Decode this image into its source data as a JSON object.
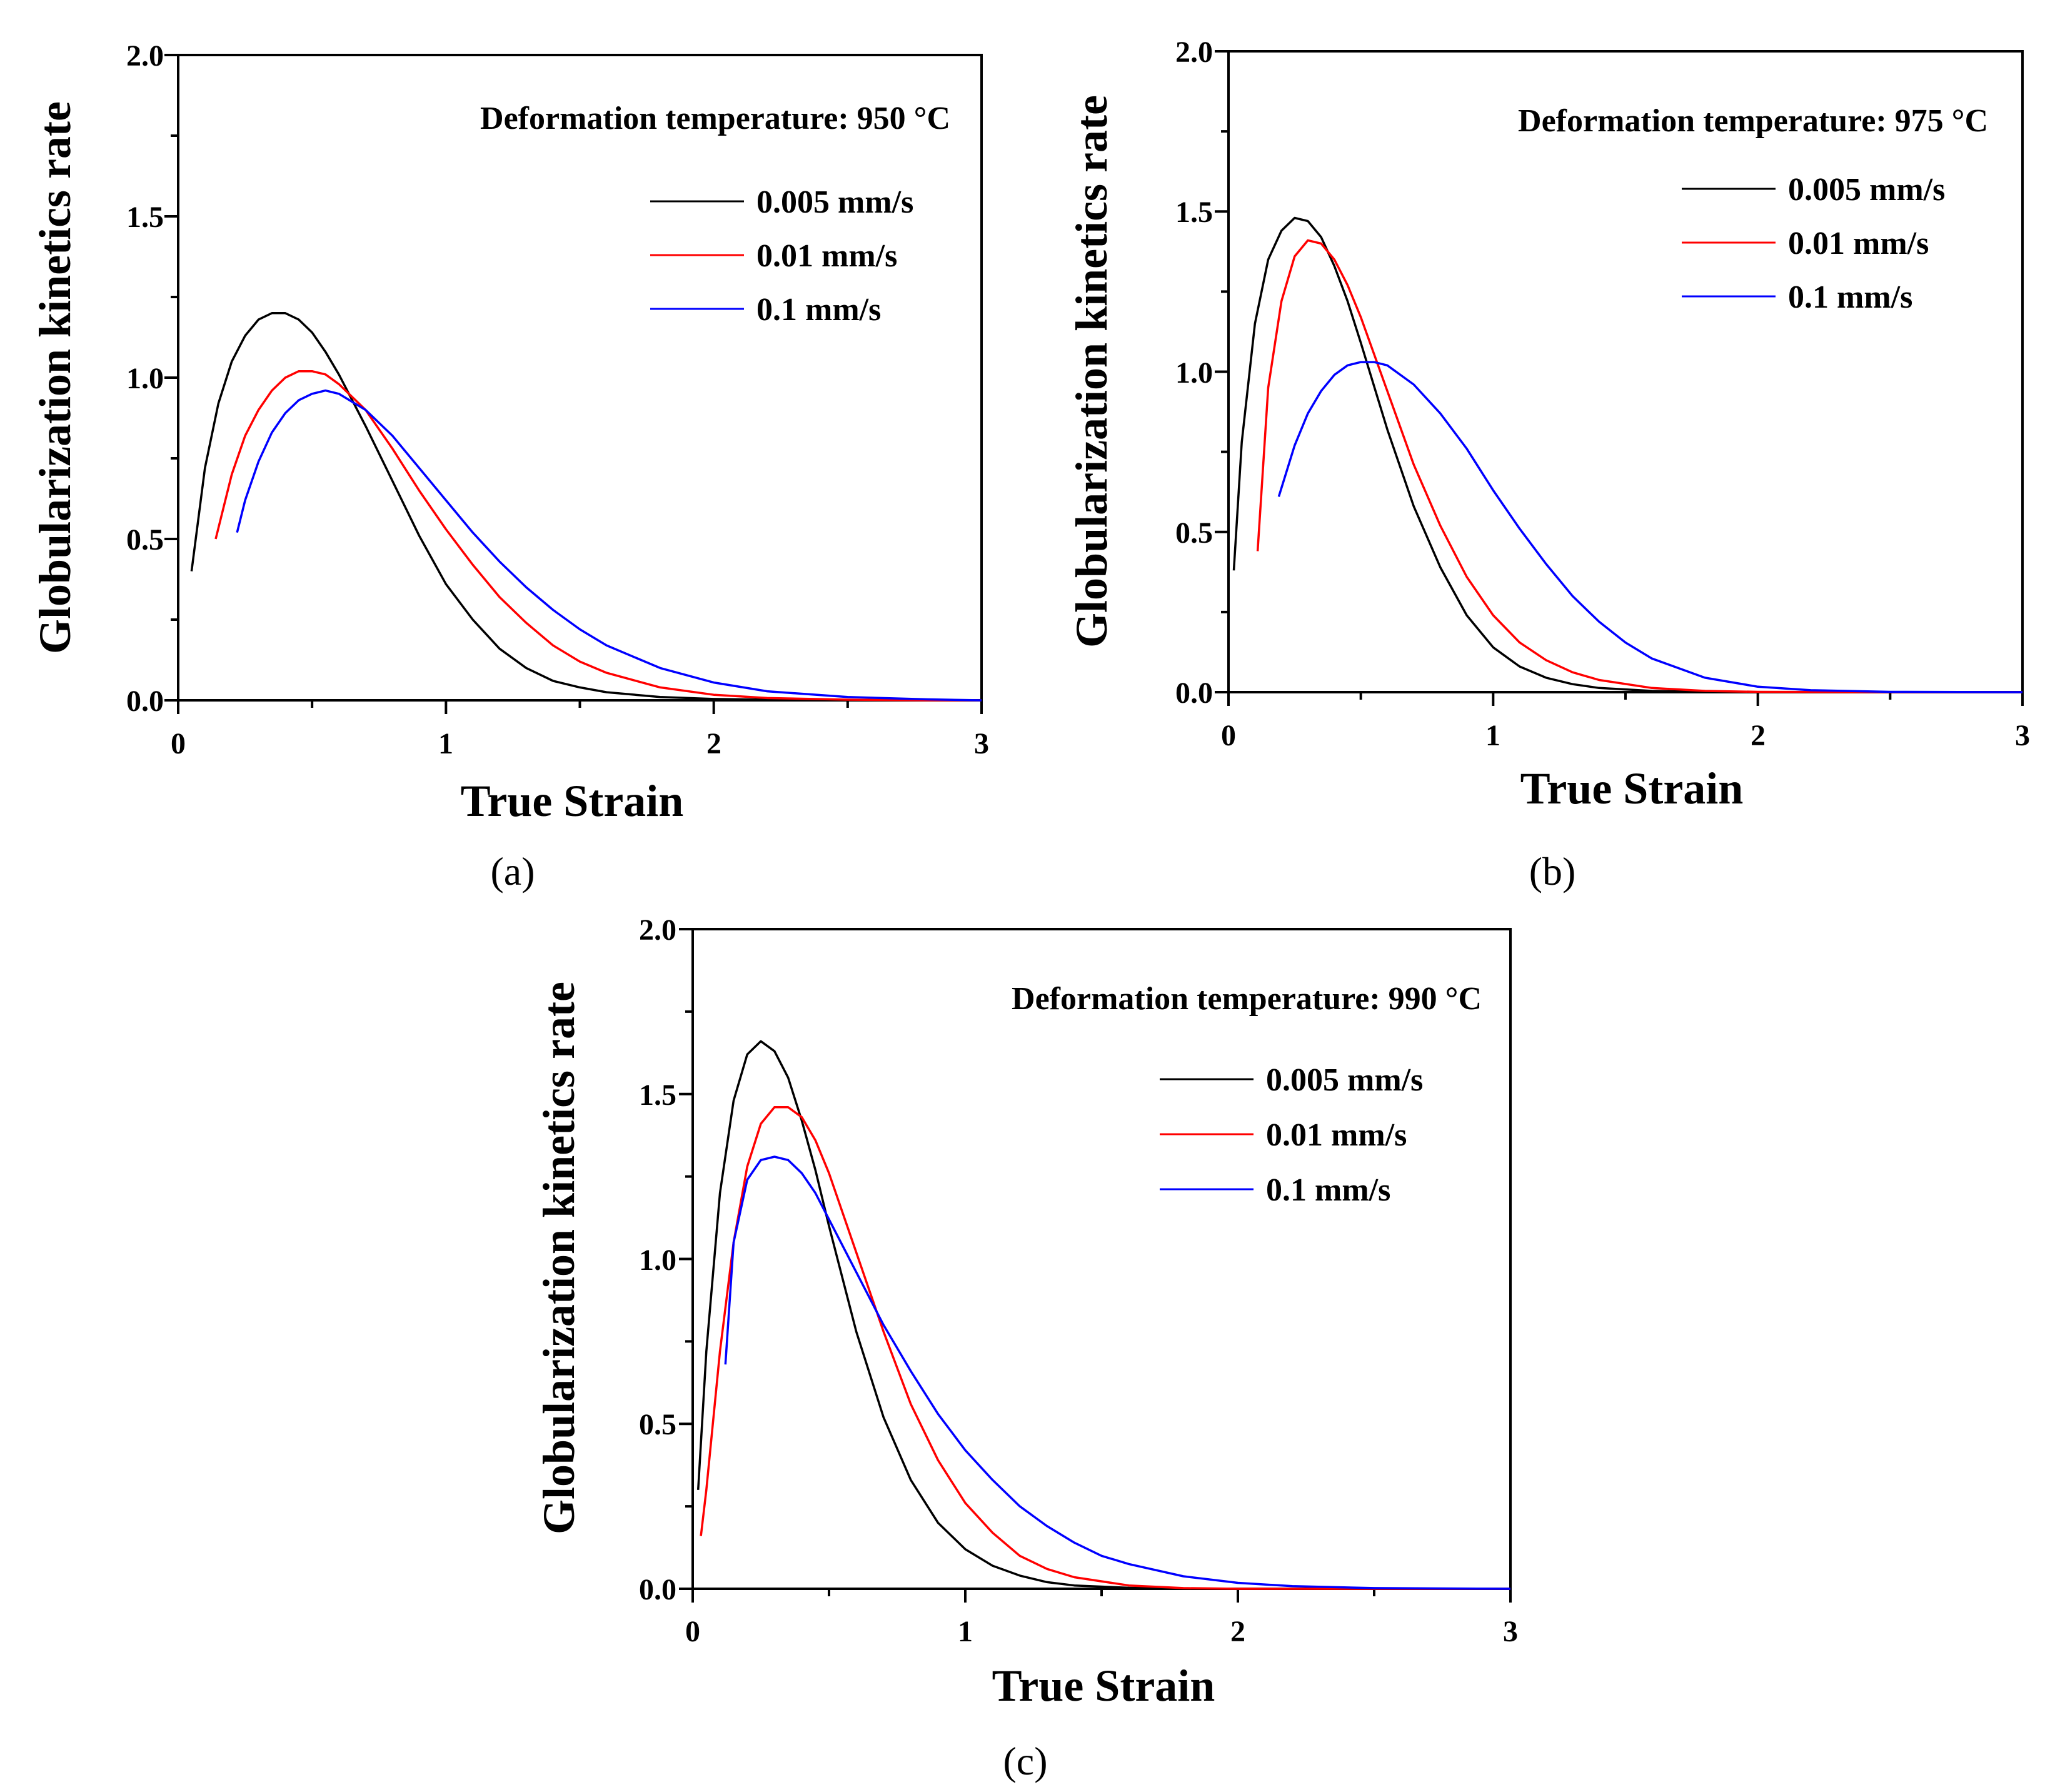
{
  "chart_data": [
    {
      "type": "line",
      "panel_label": "(a)",
      "annotation": "Deformation temperature: 950 °C",
      "xlabel": "True Strain",
      "ylabel": "Globularization kinetics rate",
      "xlim": [
        0,
        3
      ],
      "ylim": [
        0,
        2
      ],
      "x_ticks": [
        "0",
        "1",
        "2",
        "3"
      ],
      "y_ticks": [
        "0.0",
        "0.5",
        "1.0",
        "1.5",
        "2.0"
      ],
      "legend_position": "top-right",
      "series": [
        {
          "name": "0.005 mm/s",
          "color": "#000000",
          "x": [
            0.05,
            0.1,
            0.15,
            0.2,
            0.25,
            0.3,
            0.35,
            0.4,
            0.45,
            0.5,
            0.55,
            0.6,
            0.7,
            0.8,
            0.9,
            1.0,
            1.1,
            1.2,
            1.3,
            1.4,
            1.5,
            1.6,
            1.8,
            2.0,
            2.2,
            2.5,
            2.8,
            3.0
          ],
          "y": [
            0.4,
            0.72,
            0.92,
            1.05,
            1.13,
            1.18,
            1.2,
            1.2,
            1.18,
            1.14,
            1.08,
            1.01,
            0.85,
            0.68,
            0.51,
            0.36,
            0.25,
            0.16,
            0.1,
            0.06,
            0.04,
            0.025,
            0.01,
            0.004,
            0.002,
            0.0,
            0.0,
            0.0
          ]
        },
        {
          "name": "0.01 mm/s",
          "color": "#ff0000",
          "x": [
            0.14,
            0.2,
            0.25,
            0.3,
            0.35,
            0.4,
            0.45,
            0.5,
            0.55,
            0.6,
            0.7,
            0.8,
            0.9,
            1.0,
            1.1,
            1.2,
            1.3,
            1.4,
            1.5,
            1.6,
            1.8,
            2.0,
            2.2,
            2.5,
            2.8,
            3.0
          ],
          "y": [
            0.5,
            0.7,
            0.82,
            0.9,
            0.96,
            1.0,
            1.02,
            1.02,
            1.01,
            0.98,
            0.9,
            0.78,
            0.65,
            0.53,
            0.42,
            0.32,
            0.24,
            0.17,
            0.12,
            0.085,
            0.04,
            0.017,
            0.007,
            0.002,
            0.0,
            0.0
          ]
        },
        {
          "name": "0.1 mm/s",
          "color": "#0000ff",
          "x": [
            0.22,
            0.25,
            0.3,
            0.35,
            0.4,
            0.45,
            0.5,
            0.55,
            0.6,
            0.7,
            0.8,
            0.9,
            1.0,
            1.1,
            1.2,
            1.3,
            1.4,
            1.5,
            1.6,
            1.8,
            2.0,
            2.2,
            2.5,
            2.8,
            3.0
          ],
          "y": [
            0.52,
            0.62,
            0.74,
            0.83,
            0.89,
            0.93,
            0.95,
            0.96,
            0.95,
            0.9,
            0.82,
            0.72,
            0.62,
            0.52,
            0.43,
            0.35,
            0.28,
            0.22,
            0.17,
            0.1,
            0.055,
            0.028,
            0.01,
            0.003,
            0.0
          ]
        }
      ]
    },
    {
      "type": "line",
      "panel_label": "(b)",
      "annotation": "Deformation temperature: 975 °C",
      "xlabel": "True Strain",
      "ylabel": "Globularization kinetics rate",
      "xlim": [
        0,
        3
      ],
      "ylim": [
        0,
        2
      ],
      "x_ticks": [
        "0",
        "1",
        "2",
        "3"
      ],
      "y_ticks": [
        "0.0",
        "0.5",
        "1.0",
        "1.5",
        "2.0"
      ],
      "legend_position": "top-right",
      "series": [
        {
          "name": "0.005 mm/s",
          "color": "#000000",
          "x": [
            0.02,
            0.05,
            0.1,
            0.15,
            0.2,
            0.25,
            0.3,
            0.35,
            0.4,
            0.45,
            0.5,
            0.6,
            0.7,
            0.8,
            0.9,
            1.0,
            1.1,
            1.2,
            1.3,
            1.4,
            1.6,
            1.8,
            2.0,
            2.5,
            3.0
          ],
          "y": [
            0.38,
            0.78,
            1.15,
            1.35,
            1.44,
            1.48,
            1.47,
            1.42,
            1.33,
            1.22,
            1.09,
            0.82,
            0.58,
            0.39,
            0.24,
            0.14,
            0.08,
            0.045,
            0.025,
            0.013,
            0.004,
            0.001,
            0.0,
            0.0,
            0.0
          ]
        },
        {
          "name": "0.01 mm/s",
          "color": "#ff0000",
          "x": [
            0.11,
            0.15,
            0.2,
            0.25,
            0.3,
            0.35,
            0.4,
            0.45,
            0.5,
            0.6,
            0.7,
            0.8,
            0.9,
            1.0,
            1.1,
            1.2,
            1.3,
            1.4,
            1.6,
            1.8,
            2.0,
            2.5,
            3.0
          ],
          "y": [
            0.44,
            0.95,
            1.22,
            1.36,
            1.41,
            1.4,
            1.35,
            1.27,
            1.17,
            0.94,
            0.71,
            0.52,
            0.36,
            0.24,
            0.155,
            0.1,
            0.062,
            0.038,
            0.013,
            0.004,
            0.001,
            0.0,
            0.0
          ]
        },
        {
          "name": "0.1 mm/s",
          "color": "#0000ff",
          "x": [
            0.19,
            0.25,
            0.3,
            0.35,
            0.4,
            0.45,
            0.5,
            0.55,
            0.6,
            0.7,
            0.8,
            0.9,
            1.0,
            1.1,
            1.2,
            1.3,
            1.4,
            1.5,
            1.6,
            1.8,
            2.0,
            2.2,
            2.5,
            3.0
          ],
          "y": [
            0.61,
            0.77,
            0.87,
            0.94,
            0.99,
            1.02,
            1.03,
            1.03,
            1.02,
            0.96,
            0.87,
            0.76,
            0.63,
            0.51,
            0.4,
            0.3,
            0.22,
            0.155,
            0.105,
            0.045,
            0.017,
            0.006,
            0.001,
            0.0
          ]
        }
      ]
    },
    {
      "type": "line",
      "panel_label": "(c)",
      "annotation": "Deformation temperature: 990 °C",
      "xlabel": "True Strain",
      "ylabel": "Globularization kinetics rate",
      "xlim": [
        0,
        3
      ],
      "ylim": [
        0,
        2
      ],
      "x_ticks": [
        "0",
        "1",
        "2",
        "3"
      ],
      "y_ticks": [
        "0.0",
        "0.5",
        "1.0",
        "1.5",
        "2.0"
      ],
      "legend_position": "top-right",
      "series": [
        {
          "name": "0.005 mm/s",
          "color": "#000000",
          "x": [
            0.02,
            0.05,
            0.1,
            0.15,
            0.2,
            0.25,
            0.3,
            0.35,
            0.4,
            0.45,
            0.5,
            0.6,
            0.7,
            0.8,
            0.9,
            1.0,
            1.1,
            1.2,
            1.3,
            1.4,
            1.6,
            1.8,
            2.0,
            2.5,
            3.0
          ],
          "y": [
            0.3,
            0.72,
            1.2,
            1.48,
            1.62,
            1.66,
            1.63,
            1.55,
            1.42,
            1.27,
            1.1,
            0.78,
            0.52,
            0.33,
            0.2,
            0.12,
            0.07,
            0.04,
            0.02,
            0.01,
            0.003,
            0.001,
            0.0,
            0.0,
            0.0
          ]
        },
        {
          "name": "0.01 mm/s",
          "color": "#ff0000",
          "x": [
            0.03,
            0.05,
            0.1,
            0.15,
            0.2,
            0.25,
            0.3,
            0.35,
            0.4,
            0.45,
            0.5,
            0.6,
            0.7,
            0.8,
            0.9,
            1.0,
            1.1,
            1.2,
            1.3,
            1.4,
            1.6,
            1.8,
            2.0,
            2.5,
            3.0
          ],
          "y": [
            0.16,
            0.3,
            0.72,
            1.05,
            1.28,
            1.41,
            1.46,
            1.46,
            1.43,
            1.36,
            1.26,
            1.02,
            0.78,
            0.56,
            0.39,
            0.26,
            0.17,
            0.1,
            0.06,
            0.035,
            0.01,
            0.002,
            0.0,
            0.0,
            0.0
          ]
        },
        {
          "name": "0.1 mm/s",
          "color": "#0000ff",
          "x": [
            0.12,
            0.15,
            0.2,
            0.25,
            0.3,
            0.35,
            0.4,
            0.45,
            0.5,
            0.6,
            0.7,
            0.8,
            0.9,
            1.0,
            1.1,
            1.2,
            1.3,
            1.4,
            1.5,
            1.6,
            1.8,
            2.0,
            2.2,
            2.5,
            3.0
          ],
          "y": [
            0.68,
            1.05,
            1.24,
            1.3,
            1.31,
            1.3,
            1.26,
            1.2,
            1.12,
            0.96,
            0.8,
            0.66,
            0.53,
            0.42,
            0.33,
            0.25,
            0.19,
            0.14,
            0.1,
            0.075,
            0.038,
            0.018,
            0.008,
            0.002,
            0.0
          ]
        }
      ]
    }
  ]
}
